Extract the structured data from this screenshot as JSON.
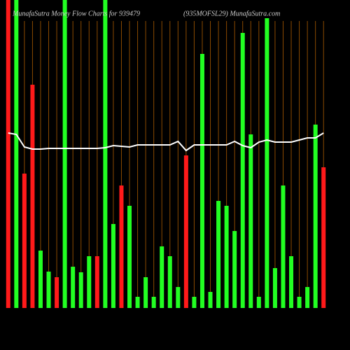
{
  "chart_data": {
    "type": "bar",
    "title": "MunafaSutra  Money  Flow  Charts for 939479",
    "subtitle": "(935MOFSL29) MunafaSutra.com",
    "categories": [
      null,
      null,
      null,
      null,
      null,
      null,
      null,
      null,
      null,
      null,
      null,
      null,
      null,
      null,
      null,
      null,
      null,
      null,
      null,
      null,
      null,
      null,
      null,
      null,
      null,
      null,
      null,
      null,
      null,
      null,
      null,
      null,
      null,
      null,
      null,
      null,
      null,
      null,
      null,
      null
    ],
    "ylim": [
      0,
      440
    ],
    "grid": true,
    "grid_color": "#8b4a00",
    "series": [
      {
        "name": null,
        "type": "bar",
        "colors": [
          "#ff1a1a",
          "#22ff22",
          "#ff1a1a",
          "#ff1a1a",
          "#22ff22",
          "#22ff22",
          "#ff1a1a",
          "#22ff22",
          "#22ff22",
          "#22ff22",
          "#22ff22",
          "#ff1a1a",
          "#22ff22",
          "#22ff22",
          "#ff1a1a",
          "#22ff22",
          "#22ff22",
          "#22ff22",
          "#22ff22",
          "#22ff22",
          "#22ff22",
          "#22ff22",
          "#ff1a1a",
          "#22ff22",
          "#22ff22",
          "#22ff22",
          "#22ff22",
          "#22ff22",
          "#22ff22",
          "#22ff22",
          "#22ff22",
          "#22ff22",
          "#22ff22",
          "#22ff22",
          "#22ff22",
          "#22ff22",
          "#22ff22",
          "#22ff22",
          "#22ff22",
          "#ff1a1a"
        ],
        "values": [
          440,
          440,
          192,
          319,
          82,
          52,
          44,
          440,
          59,
          51,
          74,
          74,
          440,
          120,
          175,
          146,
          16,
          44,
          16,
          88,
          74,
          30,
          218,
          16,
          363,
          23,
          153,
          146,
          110,
          393,
          248,
          16,
          414,
          57,
          175,
          74,
          16,
          30,
          262,
          201
        ]
      },
      {
        "name": null,
        "type": "line",
        "color": "#ffffff",
        "values": [
          250,
          248,
          230,
          227,
          227,
          228,
          228,
          228,
          228,
          228,
          228,
          228,
          229,
          232,
          231,
          230,
          233,
          233,
          233,
          233,
          233,
          238,
          225,
          233,
          233,
          233,
          233,
          233,
          238,
          232,
          229,
          237,
          240,
          237,
          237,
          237,
          240,
          243,
          243,
          250
        ]
      }
    ]
  }
}
